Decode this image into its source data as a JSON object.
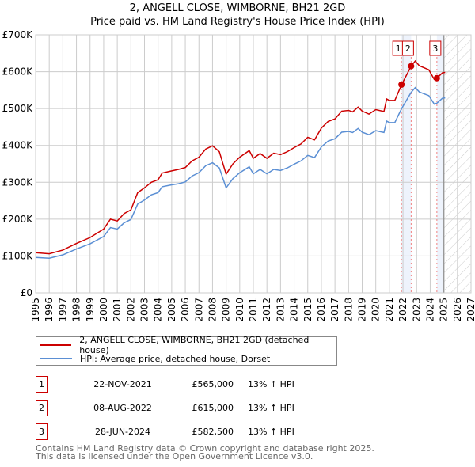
{
  "chart_data": {
    "type": "line",
    "title": "2, ANGELL CLOSE, WIMBORNE, BH21 2GD",
    "subtitle": "Price paid vs. HM Land Registry's House Price Index (HPI)",
    "xlim": [
      1995,
      2027
    ],
    "ylim": [
      0,
      700000
    ],
    "y_ticks": [
      {
        "v": 0,
        "label": "£0"
      },
      {
        "v": 100000,
        "label": "£100K"
      },
      {
        "v": 200000,
        "label": "£200K"
      },
      {
        "v": 300000,
        "label": "£300K"
      },
      {
        "v": 400000,
        "label": "£400K"
      },
      {
        "v": 500000,
        "label": "£500K"
      },
      {
        "v": 600000,
        "label": "£600K"
      },
      {
        "v": 700000,
        "label": "£700K"
      }
    ],
    "x_ticks": [
      "1995",
      "1996",
      "1997",
      "1998",
      "1999",
      "2000",
      "2001",
      "2002",
      "2003",
      "2004",
      "2005",
      "2006",
      "2007",
      "2008",
      "2009",
      "2010",
      "2011",
      "2012",
      "2013",
      "2014",
      "2015",
      "2016",
      "2017",
      "2018",
      "2019",
      "2020",
      "2021",
      "2022",
      "2023",
      "2024",
      "2025",
      "2026",
      "2027"
    ],
    "grid": true,
    "forecast_from": 2025,
    "series": [
      {
        "name": "2, ANGELL CLOSE, WIMBORNE, BH21 2GD (detached house)",
        "color": "#cc0000",
        "x": [
          1995,
          1996,
          1997,
          1998,
          1999,
          2000,
          2000.5,
          2001,
          2001.5,
          2002,
          2002.5,
          2003,
          2003.5,
          2004,
          2004.3,
          2005,
          2005.5,
          2006,
          2006.5,
          2007,
          2007.5,
          2008,
          2008.5,
          2009,
          2009.5,
          2010,
          2010.7,
          2011,
          2011.5,
          2012,
          2012.5,
          2013,
          2013.5,
          2014,
          2014.5,
          2015,
          2015.5,
          2016,
          2016.5,
          2017,
          2017.5,
          2018,
          2018.3,
          2018.7,
          2019,
          2019.5,
          2020,
          2020.6,
          2020.8,
          2021,
          2021.4,
          2021.9,
          2022.6,
          2022.9,
          2023.2,
          2023.9,
          2024.3,
          2024.5,
          2024.9,
          2025.1
        ],
        "y": [
          109,
          106,
          116,
          134,
          150,
          173,
          200,
          195,
          215,
          225,
          272,
          285,
          300,
          307,
          325,
          331,
          335,
          340,
          358,
          368,
          390,
          399,
          383,
          322,
          350,
          368,
          386,
          365,
          378,
          365,
          379,
          375,
          383,
          394,
          404,
          422,
          415,
          447,
          465,
          472,
          493,
          495,
          491,
          504,
          493,
          485,
          497,
          492,
          526,
          522,
          522,
          565,
          615,
          629,
          616,
          605,
          579,
          582.5,
          597,
          598
        ]
      },
      {
        "name": "HPI: Average price, detached house, Dorset",
        "color": "#5b8fd4",
        "x": [
          1995,
          1996,
          1997,
          1998,
          1999,
          2000,
          2000.5,
          2001,
          2001.5,
          2002,
          2002.5,
          2003,
          2003.5,
          2004,
          2004.3,
          2005,
          2005.5,
          2006,
          2006.5,
          2007,
          2007.5,
          2008,
          2008.5,
          2009,
          2009.5,
          2010,
          2010.7,
          2011,
          2011.5,
          2012,
          2012.5,
          2013,
          2013.5,
          2014,
          2014.5,
          2015,
          2015.5,
          2016,
          2016.5,
          2017,
          2017.5,
          2018,
          2018.3,
          2018.7,
          2019,
          2019.5,
          2020,
          2020.6,
          2020.8,
          2021,
          2021.4,
          2021.9,
          2022.6,
          2022.9,
          2023.2,
          2023.9,
          2024.3,
          2024.5,
          2024.9,
          2025.1
        ],
        "y": [
          96,
          94,
          103,
          119,
          133,
          153,
          177,
          173,
          190,
          199,
          241,
          252,
          266,
          272,
          288,
          293,
          296,
          301,
          317,
          326,
          345,
          353,
          339,
          285,
          310,
          326,
          342,
          323,
          335,
          323,
          335,
          332,
          339,
          349,
          358,
          373,
          367,
          396,
          412,
          418,
          436,
          438,
          435,
          446,
          436,
          429,
          440,
          435,
          466,
          462,
          462,
          500,
          544,
          557,
          545,
          535,
          512,
          515,
          528,
          529
        ]
      }
    ],
    "y_units": "thousands GBP",
    "sales": [
      {
        "id": "1",
        "x": 2021.89,
        "y": 565
      },
      {
        "id": "2",
        "x": 2022.6,
        "y": 615
      },
      {
        "id": "3",
        "x": 2024.49,
        "y": 582.5
      }
    ]
  },
  "legend": {
    "red": "2, ANGELL CLOSE, WIMBORNE, BH21 2GD (detached house)",
    "blue": "HPI: Average price, detached house, Dorset"
  },
  "table": [
    {
      "num": "1",
      "date": "22-NOV-2021",
      "price": "£565,000",
      "hpi": "13% ↑ HPI"
    },
    {
      "num": "2",
      "date": "08-AUG-2022",
      "price": "£615,000",
      "hpi": "13% ↑ HPI"
    },
    {
      "num": "3",
      "date": "28-JUN-2024",
      "price": "£582,500",
      "hpi": "13% ↑ HPI"
    }
  ],
  "footer": {
    "line1": "Contains HM Land Registry data © Crown copyright and database right 2025.",
    "line2": "This data is licensed under the Open Government Licence v3.0."
  }
}
